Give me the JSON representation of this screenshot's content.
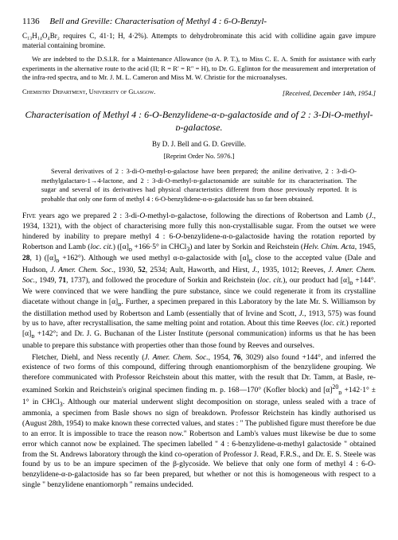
{
  "header": {
    "page_number": "1136",
    "running_title": "Bell and Greville: Characterisation of Methyl 4 : 6-O-Benzyl-"
  },
  "prev_article": {
    "formula_line": "C₁₃H₁₄O₄Br₂ requires C, 41·1; H, 4·2%). Attempts to dehydrobrominate this acid with collidine again gave impure material containing bromine.",
    "acknowledgment": "We are indebted to the D.S.I.R. for a Maintenance Allowance (to A. P. T.), to Miss C. E. A. Smith for assistance with early experiments in the alternative route to the acid (II; R = R′ = R″ = H), to Dr. G. Eglinton for the measurement and interpretation of the infra-red spectra, and to Mr. J. M. L. Cameron and Miss M. W. Christie for the microanalyses.",
    "department": "Chemistry Department, University of Glasgow.",
    "received": "[Received, December 14th, 1954.]"
  },
  "article": {
    "title": "Characterisation of Methyl 4 : 6-O-Benzylidene-α-ᴅ-galactoside and of 2 : 3-Di-O-methyl-ᴅ-galactose.",
    "authors": "By D. J. Bell and G. D. Greville.",
    "reprint": "[Reprint Order No. 5976.]",
    "abstract": "Several derivatives of 2 : 3-di-O-methyl-ᴅ-galactose have been prepared; the aniline derivative, 2 : 3-di-O-methylgalactaro-1→4-lactone, and 2 : 3-di-O-methyl-ᴅ-galactonamide are suitable for its characterisation. The sugar and several of its derivatives had physical characteristics different from those previously reported. It is probable that only one form of methyl 4 : 6-O-benzylidene-α-ᴅ-galactoside has so far been obtained.",
    "body": {
      "p1": "Five years ago we prepared 2 : 3-di-O-methyl-ᴅ-galactose, following the directions of Robertson and Lamb (J., 1934, 1321), with the object of characterising more fully this non-crystallisable sugar. From the outset we were hindered by inability to prepare methyl 4 : 6-O-benzylidene-α-ᴅ-galactoside having the rotation reported by Robertson and Lamb (loc. cit.) ([α]ᴅ +166·5° in CHCl₃) and later by Sorkin and Reichstein (Helv. Chim. Acta, 1945, 28, 1) ([α]ᴅ +162°). Although we used methyl α-ᴅ-galactoside with [α]ᴅ close to the accepted value (Dale and Hudson, J. Amer. Chem. Soc., 1930, 52, 2534; Ault, Haworth, and Hirst, J., 1935, 1012; Reeves, J. Amer. Chem. Soc., 1949, 71, 1737), and followed the procedure of Sorkin and Reichstein (loc. cit.), our product had [α]ᴅ +144°. We were convinced that we were handling the pure substance, since we could regenerate it from its crystalline diacetate without change in [α]ᴅ. Further, a specimen prepared in this Laboratory by the late Mr. S. Williamson by the distillation method used by Robertson and Lamb (essentially that of Irvine and Scott, J., 1913, 575) was found by us to have, after recrystallisation, the same melting point and rotation. About this time Reeves (loc. cit.) reported [α]ᴅ +142°; and Dr. J. G. Buchanan of the Lister Institute (personal communication) informs us that he has been unable to prepare this substance with properties other than those found by Reeves and ourselves.",
      "p2": "Fletcher, Diehl, and Ness recently (J. Amer. Chem. Soc., 1954, 76, 3029) also found +144°, and inferred the existence of two forms of this compound, differing through enantiomorphism of the benzylidene grouping. We therefore communicated with Professor Reichstein about this matter, with the result that Dr. Tamm, at Basle, re-examined Sorkin and Reichstein's original specimen finding m. p. 168—170° (Kofler block) and [α]²⁰ᴅ +142·1° ± 1° in CHCl₃. Although our material underwent slight decomposition on storage, unless sealed with a trace of ammonia, a specimen from Basle shows no sign of breakdown. Professor Reichstein has kindly authorised us (August 28th, 1954) to make known these corrected values, and states : \" The published figure must therefore be due to an error. It is impossible to trace the reason now.\" Robertson and Lamb's values must likewise be due to some error which cannot now be explained. The specimen labelled \" 4 : 6-benzylidene-α-methyl galactoside \" obtained from the St. Andrews laboratory through the kind co-operation of Professor J. Read, F.R.S., and Dr. E. S. Steele was found by us to be an impure specimen of the β-glycoside. We believe that only one form of methyl 4 : 6-O-benzylidene-α-ᴅ-galactoside has so far been prepared, but whether or not this is homogeneous with respect to a single \" benzylidene enantiomorph \" remains undecided."
    }
  }
}
